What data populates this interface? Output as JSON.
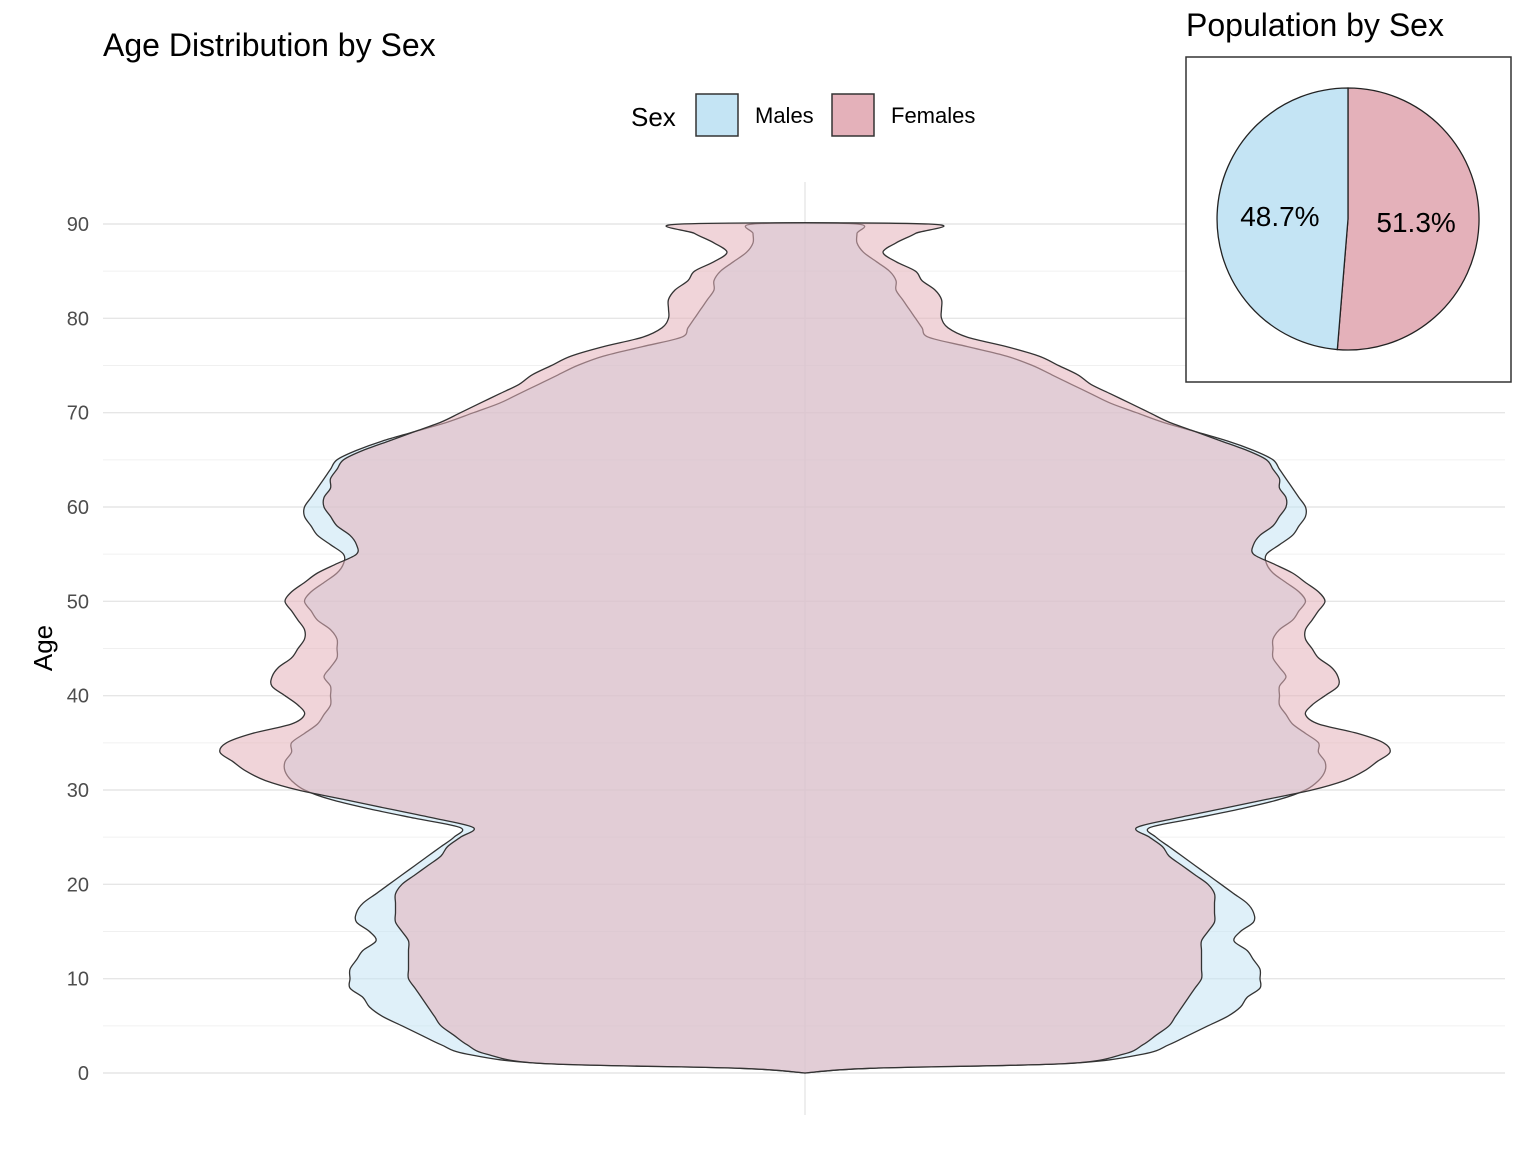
{
  "chart_data": [
    {
      "type": "violin",
      "title": "Age Distribution by Sex",
      "xlabel": "",
      "ylabel": "Age",
      "ylim": [
        0,
        90
      ],
      "y_ticks": [
        "0",
        "10",
        "20",
        "30",
        "40",
        "50",
        "60",
        "70",
        "80",
        "90"
      ],
      "grid": true,
      "legend": {
        "title": "Sex",
        "position": "top",
        "entries": [
          {
            "label": "Males",
            "color": "#c4e4f4"
          },
          {
            "label": "Females",
            "color": "#e4b1ba"
          }
        ]
      },
      "series": [
        {
          "name": "Males",
          "color": "#c4e4f4",
          "density": [
            [
              0,
              0
            ],
            [
              0.5,
              0.1
            ],
            [
              1,
              0.4
            ],
            [
              2,
              0.52
            ],
            [
              3,
              0.56
            ],
            [
              4,
              0.59
            ],
            [
              5,
              0.62
            ],
            [
              6,
              0.65
            ],
            [
              7,
              0.67
            ],
            [
              8,
              0.68
            ],
            [
              9,
              0.7
            ],
            [
              10,
              0.7
            ],
            [
              11,
              0.7
            ],
            [
              12,
              0.69
            ],
            [
              13,
              0.68
            ],
            [
              14,
              0.66
            ],
            [
              15,
              0.67
            ],
            [
              16,
              0.69
            ],
            [
              17,
              0.69
            ],
            [
              18,
              0.68
            ],
            [
              19,
              0.66
            ],
            [
              20,
              0.64
            ],
            [
              21,
              0.62
            ],
            [
              22,
              0.6
            ],
            [
              23,
              0.58
            ],
            [
              24,
              0.56
            ],
            [
              25,
              0.54
            ],
            [
              26,
              0.53
            ],
            [
              27,
              0.6
            ],
            [
              28,
              0.67
            ],
            [
              29,
              0.73
            ],
            [
              30,
              0.77
            ],
            [
              31,
              0.79
            ],
            [
              32,
              0.8
            ],
            [
              33,
              0.8
            ],
            [
              34,
              0.79
            ],
            [
              35,
              0.79
            ],
            [
              36,
              0.77
            ],
            [
              37,
              0.75
            ],
            [
              38,
              0.74
            ],
            [
              39,
              0.73
            ],
            [
              40,
              0.73
            ],
            [
              41,
              0.73
            ],
            [
              42,
              0.74
            ],
            [
              43,
              0.73
            ],
            [
              44,
              0.72
            ],
            [
              45,
              0.72
            ],
            [
              46,
              0.72
            ],
            [
              47,
              0.73
            ],
            [
              48,
              0.75
            ],
            [
              49,
              0.76
            ],
            [
              50,
              0.77
            ],
            [
              51,
              0.76
            ],
            [
              52,
              0.74
            ],
            [
              53,
              0.72
            ],
            [
              54,
              0.71
            ],
            [
              55,
              0.71
            ],
            [
              56,
              0.73
            ],
            [
              57,
              0.75
            ],
            [
              58,
              0.76
            ],
            [
              59,
              0.77
            ],
            [
              60,
              0.77
            ],
            [
              61,
              0.76
            ],
            [
              62,
              0.75
            ],
            [
              63,
              0.74
            ],
            [
              64,
              0.73
            ],
            [
              65,
              0.72
            ],
            [
              66,
              0.69
            ],
            [
              67,
              0.65
            ],
            [
              68,
              0.6
            ],
            [
              69,
              0.55
            ],
            [
              70,
              0.51
            ],
            [
              71,
              0.47
            ],
            [
              72,
              0.44
            ],
            [
              73,
              0.41
            ],
            [
              74,
              0.38
            ],
            [
              75,
              0.35
            ],
            [
              76,
              0.31
            ],
            [
              77,
              0.25
            ],
            [
              78,
              0.19
            ],
            [
              79,
              0.18
            ],
            [
              80,
              0.17
            ],
            [
              81,
              0.16
            ],
            [
              82,
              0.15
            ],
            [
              83,
              0.14
            ],
            [
              84,
              0.14
            ],
            [
              85,
              0.13
            ],
            [
              86,
              0.11
            ],
            [
              87,
              0.09
            ],
            [
              88,
              0.08
            ],
            [
              89,
              0.08
            ],
            [
              90,
              0.08
            ]
          ]
        },
        {
          "name": "Females",
          "color": "#e4b1ba",
          "density": [
            [
              0,
              0
            ],
            [
              0.5,
              0.1
            ],
            [
              1,
              0.4
            ],
            [
              2,
              0.49
            ],
            [
              3,
              0.52
            ],
            [
              4,
              0.54
            ],
            [
              5,
              0.56
            ],
            [
              6,
              0.57
            ],
            [
              7,
              0.58
            ],
            [
              8,
              0.59
            ],
            [
              9,
              0.6
            ],
            [
              10,
              0.61
            ],
            [
              11,
              0.61
            ],
            [
              12,
              0.61
            ],
            [
              13,
              0.61
            ],
            [
              14,
              0.61
            ],
            [
              15,
              0.62
            ],
            [
              16,
              0.63
            ],
            [
              17,
              0.63
            ],
            [
              18,
              0.63
            ],
            [
              19,
              0.63
            ],
            [
              20,
              0.62
            ],
            [
              21,
              0.6
            ],
            [
              22,
              0.58
            ],
            [
              23,
              0.56
            ],
            [
              24,
              0.55
            ],
            [
              25,
              0.53
            ],
            [
              26,
              0.51
            ],
            [
              27,
              0.57
            ],
            [
              28,
              0.64
            ],
            [
              29,
              0.71
            ],
            [
              30,
              0.78
            ],
            [
              31,
              0.83
            ],
            [
              32,
              0.86
            ],
            [
              33,
              0.88
            ],
            [
              34,
              0.9
            ],
            [
              35,
              0.89
            ],
            [
              36,
              0.85
            ],
            [
              37,
              0.79
            ],
            [
              38,
              0.77
            ],
            [
              39,
              0.78
            ],
            [
              40,
              0.8
            ],
            [
              41,
              0.82
            ],
            [
              42,
              0.82
            ],
            [
              43,
              0.81
            ],
            [
              44,
              0.79
            ],
            [
              45,
              0.78
            ],
            [
              46,
              0.77
            ],
            [
              47,
              0.77
            ],
            [
              48,
              0.78
            ],
            [
              49,
              0.79
            ],
            [
              50,
              0.8
            ],
            [
              51,
              0.79
            ],
            [
              52,
              0.77
            ],
            [
              53,
              0.75
            ],
            [
              54,
              0.72
            ],
            [
              55,
              0.69
            ],
            [
              56,
              0.69
            ],
            [
              57,
              0.7
            ],
            [
              58,
              0.72
            ],
            [
              59,
              0.73
            ],
            [
              60,
              0.74
            ],
            [
              61,
              0.74
            ],
            [
              62,
              0.73
            ],
            [
              63,
              0.73
            ],
            [
              64,
              0.72
            ],
            [
              65,
              0.71
            ],
            [
              66,
              0.68
            ],
            [
              67,
              0.64
            ],
            [
              68,
              0.6
            ],
            [
              69,
              0.56
            ],
            [
              70,
              0.53
            ],
            [
              71,
              0.5
            ],
            [
              72,
              0.47
            ],
            [
              73,
              0.44
            ],
            [
              74,
              0.42
            ],
            [
              75,
              0.39
            ],
            [
              76,
              0.36
            ],
            [
              77,
              0.31
            ],
            [
              78,
              0.25
            ],
            [
              79,
              0.22
            ],
            [
              80,
              0.21
            ],
            [
              81,
              0.21
            ],
            [
              82,
              0.21
            ],
            [
              83,
              0.2
            ],
            [
              84,
              0.18
            ],
            [
              85,
              0.17
            ],
            [
              86,
              0.14
            ],
            [
              87,
              0.12
            ],
            [
              88,
              0.14
            ],
            [
              89,
              0.17
            ],
            [
              90,
              0.19
            ]
          ]
        }
      ]
    },
    {
      "type": "pie",
      "title": "Population by Sex",
      "slices": [
        {
          "name": "Males",
          "value": 48.7,
          "label": "48.7%",
          "color": "#c4e4f4"
        },
        {
          "name": "Females",
          "value": 51.3,
          "label": "51.3%",
          "color": "#e4b1ba"
        }
      ]
    }
  ]
}
